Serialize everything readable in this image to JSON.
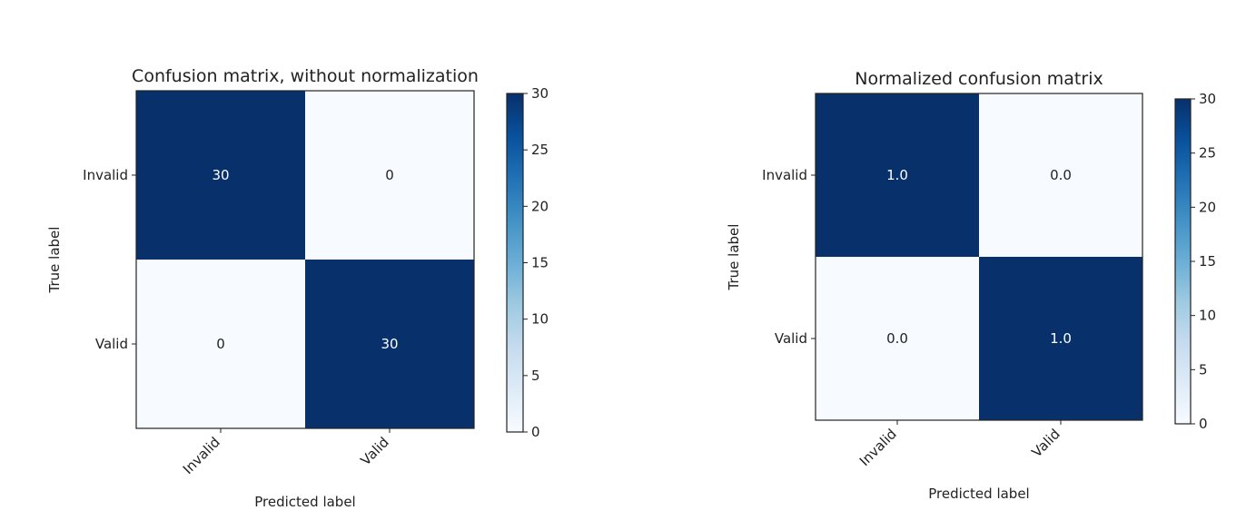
{
  "chart_data": [
    {
      "type": "heatmap",
      "title": "Confusion matrix, without normalization",
      "xlabel": "Predicted label",
      "ylabel": "True label",
      "x_categories": [
        "Invalid",
        "Valid"
      ],
      "y_categories": [
        "Invalid",
        "Valid"
      ],
      "values": [
        [
          30,
          0
        ],
        [
          0,
          30
        ]
      ],
      "cell_labels": [
        [
          "30",
          "0"
        ],
        [
          "0",
          "30"
        ]
      ],
      "colorbar": {
        "min": 0,
        "max": 30,
        "ticks": [
          0,
          5,
          10,
          15,
          20,
          25,
          30
        ]
      },
      "colormap": [
        "#f7fbff",
        "#deebf7",
        "#c6dbef",
        "#9ecae1",
        "#6baed6",
        "#4292c6",
        "#2171b5",
        "#08519c",
        "#08306b"
      ],
      "grid": false
    },
    {
      "type": "heatmap",
      "title": "Normalized confusion matrix",
      "xlabel": "Predicted label",
      "ylabel": "True label",
      "x_categories": [
        "Invalid",
        "Valid"
      ],
      "y_categories": [
        "Invalid",
        "Valid"
      ],
      "values": [
        [
          1.0,
          0.0
        ],
        [
          0.0,
          1.0
        ]
      ],
      "cell_labels": [
        [
          "1.0",
          "0.0"
        ],
        [
          "0.0",
          "1.0"
        ]
      ],
      "colorbar": {
        "min": 0,
        "max": 30,
        "ticks": [
          0,
          5,
          10,
          15,
          20,
          25,
          30
        ]
      },
      "colormap": [
        "#f7fbff",
        "#deebf7",
        "#c6dbef",
        "#9ecae1",
        "#6baed6",
        "#4292c6",
        "#2171b5",
        "#08519c",
        "#08306b"
      ],
      "grid": false
    }
  ]
}
